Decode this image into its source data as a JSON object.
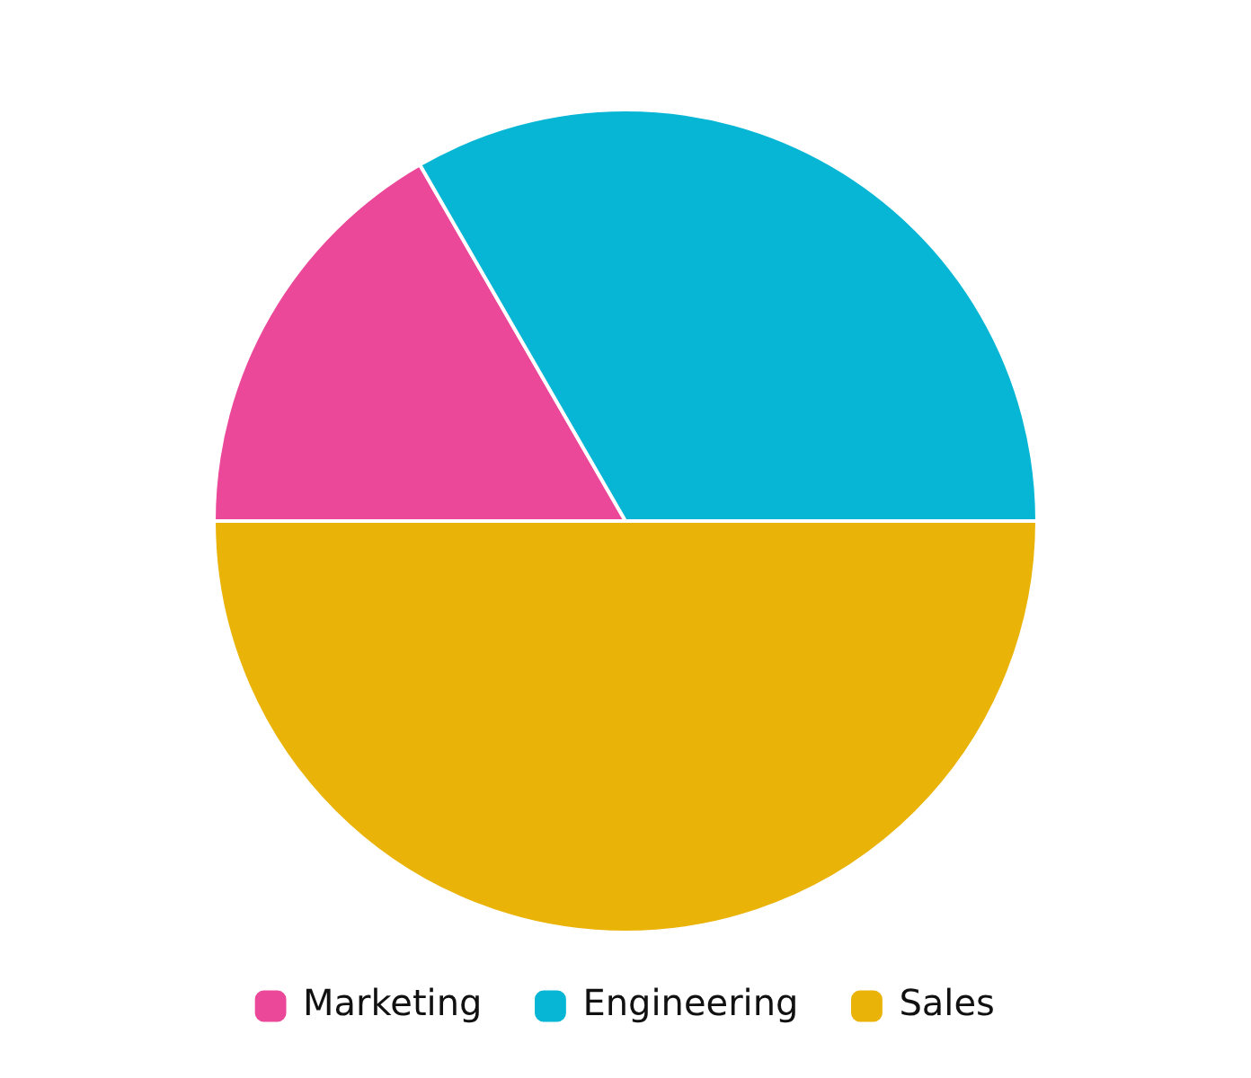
{
  "chart_data": {
    "type": "pie",
    "categories": [
      "Marketing",
      "Engineering",
      "Sales"
    ],
    "values": [
      16.67,
      33.33,
      50
    ],
    "colors": [
      "#ec4899",
      "#06b6d4",
      "#eab308"
    ],
    "legend": "bottom"
  }
}
